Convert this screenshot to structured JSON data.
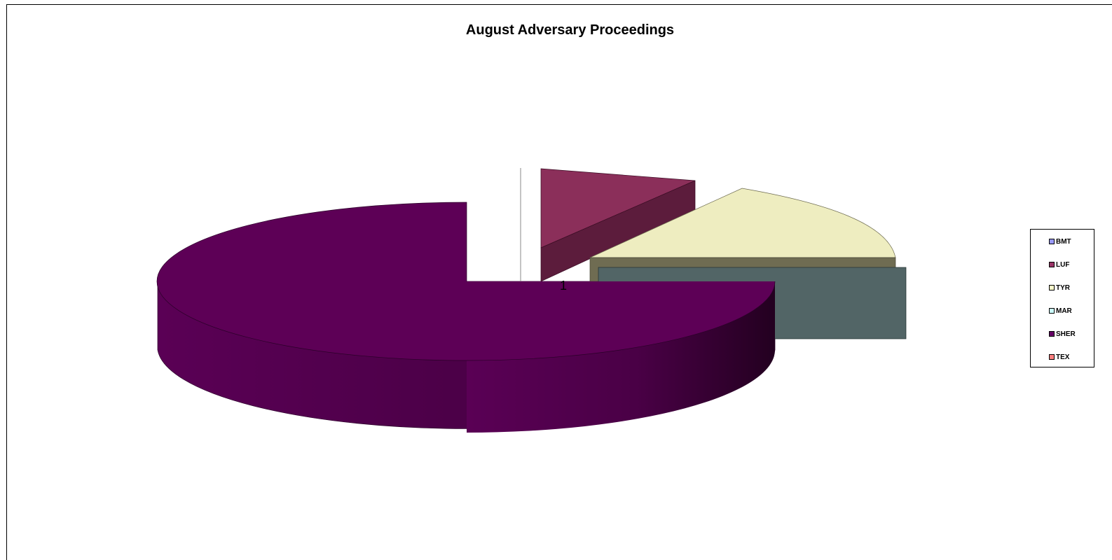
{
  "chart_data": {
    "type": "pie",
    "title": "August Adversary Proceedings",
    "category_label": "1",
    "slices": [
      {
        "label": "BMT",
        "value": 0,
        "color": "#9999FF"
      },
      {
        "label": "LUF",
        "value": 10,
        "color": "#993366"
      },
      {
        "label": "TYR",
        "value": 18,
        "color": "#FFFFCC"
      },
      {
        "label": "MAR",
        "value": 0,
        "color": "#CCFFFF"
      },
      {
        "label": "SHER",
        "value": 72,
        "color": "#660066"
      },
      {
        "label": "TEX",
        "value": 0,
        "color": "#FF8080"
      }
    ],
    "legend_position": "right",
    "style": "3d-exploded"
  }
}
